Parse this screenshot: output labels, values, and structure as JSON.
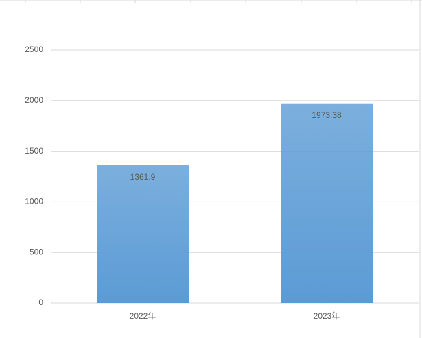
{
  "chart_data": {
    "type": "bar",
    "categories": [
      "2022年",
      "2023年"
    ],
    "values": [
      1361.9,
      1973.38
    ],
    "color": "#5b9bd5",
    "ylim": [
      0,
      2500
    ],
    "yticks": [
      0,
      500,
      1000,
      1500,
      2000,
      2500
    ],
    "grid": true
  }
}
